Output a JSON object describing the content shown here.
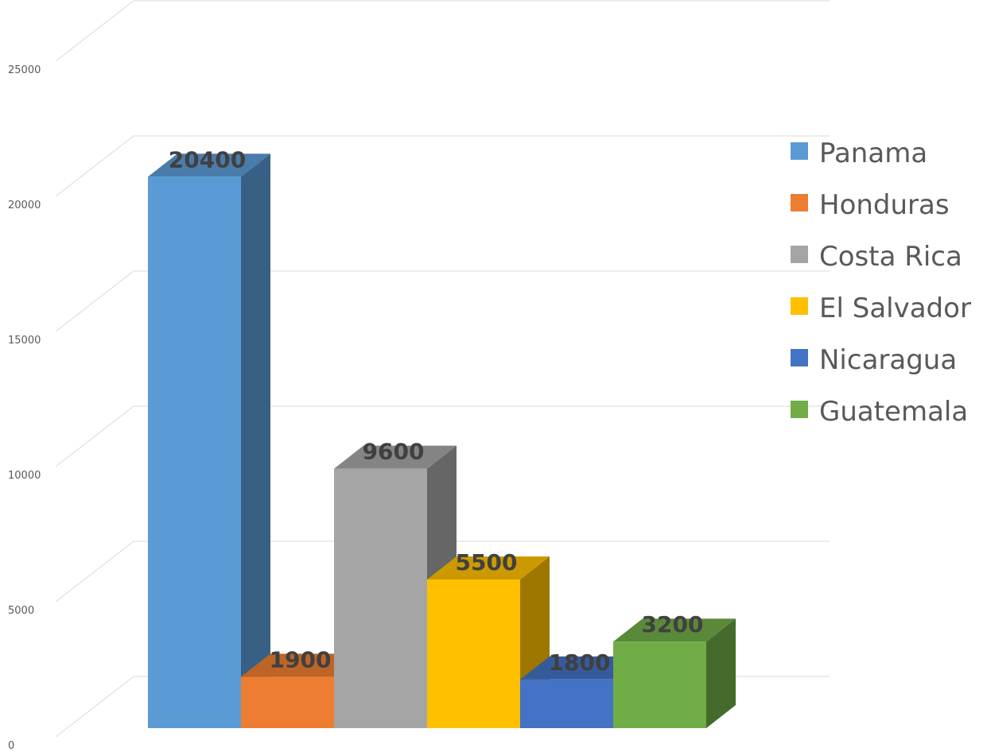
{
  "chart_data": {
    "type": "bar",
    "style": "3d-column",
    "title": "",
    "xlabel": "",
    "ylabel": "",
    "categories": [
      "Panama",
      "Honduras",
      "Costa Rica",
      "El Salvador",
      "Nicaragua",
      "Guatemala"
    ],
    "values": [
      20400,
      1900,
      9600,
      5500,
      1800,
      3200
    ],
    "data_labels": [
      "20400",
      "1900",
      "9600",
      "5500",
      "1800",
      "3200"
    ],
    "colors": [
      "#5B9BD5",
      "#ED7D31",
      "#A5A5A5",
      "#FFC000",
      "#4472C4",
      "#70AD47"
    ],
    "ylim": [
      0,
      25000
    ],
    "y_ticks": [
      0,
      5000,
      10000,
      15000,
      20000,
      25000
    ],
    "y_tick_labels": [
      "0",
      "5000",
      "10000",
      "15000",
      "20000",
      "25000"
    ],
    "grid": true,
    "legend": {
      "position": "right",
      "entries": [
        "Panama",
        "Honduras",
        "Costa Rica",
        "El Salvador",
        "Nicaragua",
        "Guatemala"
      ]
    }
  }
}
